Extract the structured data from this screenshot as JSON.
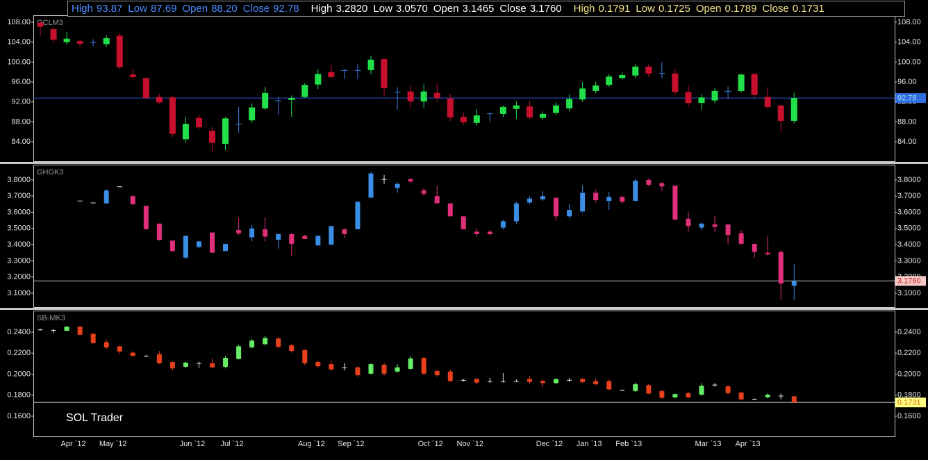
{
  "watermark": "SOL Trader",
  "chart_data": [
    {
      "type": "candlestick",
      "name": "GCLM3",
      "header": [
        {
          "label": "High",
          "value": "93.87"
        },
        {
          "label": "Low",
          "value": "87.69"
        },
        {
          "label": "Open",
          "value": "88.20"
        },
        {
          "label": "Close",
          "value": "92.78"
        }
      ],
      "header_color": "#4a8cff",
      "colors": {
        "up": "#22e04a",
        "down": "#c8102e",
        "flat": "#3a7de0"
      },
      "ylim": [
        80.1,
        109.4
      ],
      "yticks": [
        {
          "value": 84,
          "label": "84.00"
        },
        {
          "value": 88,
          "label": "88.00"
        },
        {
          "value": 92,
          "label": "92.00"
        },
        {
          "value": 96,
          "label": "96.00"
        },
        {
          "value": 100,
          "label": "100.00"
        },
        {
          "value": 104,
          "label": "104.00"
        },
        {
          "value": 108,
          "label": "108.00"
        }
      ],
      "last": {
        "value": 92.78,
        "label": "92.78",
        "line_color": "#2a52d6",
        "box_color": "#2f6fe0",
        "text_color": "#a8d4ff"
      },
      "open": [
        107.9,
        106.6,
        104.0,
        104.2,
        104.0,
        103.6,
        105.3,
        97.5,
        96.8,
        93.0,
        92.9,
        84.5,
        88.8,
        86.2,
        83.6,
        87.6,
        88.3,
        90.7,
        92.3,
        92.4,
        93.0,
        95.5,
        98.0,
        98.4,
        98.4,
        98.4,
        100.6,
        94.0,
        94.1,
        92.1,
        93.8,
        92.7,
        89.0,
        87.8,
        89.7,
        89.6,
        90.6,
        91.1,
        88.8,
        89.8,
        90.7,
        92.5,
        94.2,
        95.4,
        96.8,
        97.3,
        99.1,
        97.8,
        97.7,
        94.0,
        91.8,
        92.3,
        94.2,
        94.2,
        97.6,
        93.0,
        91.3,
        88.2
      ],
      "high": [
        108.1,
        107.0,
        106.0,
        104.6,
        104.6,
        105.4,
        105.8,
        98.5,
        96.9,
        93.6,
        93.3,
        89.0,
        89.5,
        87.0,
        89.0,
        91.0,
        91.7,
        95.0,
        93.0,
        93.3,
        95.8,
        98.5,
        99.4,
        98.6,
        99.6,
        101.3,
        100.7,
        95.0,
        95.2,
        95.5,
        95.7,
        93.5,
        89.8,
        90.6,
        89.9,
        91.3,
        92.1,
        92.2,
        90.1,
        91.9,
        93.5,
        96.0,
        96.1,
        97.6,
        98.0,
        99.6,
        99.5,
        100.0,
        98.6,
        95.3,
        93.6,
        94.8,
        95.1,
        97.7,
        97.8,
        95.0,
        91.4,
        93.87
      ],
      "low": [
        105.3,
        104.0,
        103.5,
        103.0,
        103.2,
        103.0,
        98.6,
        96.5,
        92.6,
        91.6,
        85.0,
        83.8,
        86.5,
        82.0,
        82.3,
        85.8,
        87.8,
        90.4,
        89.5,
        89.0,
        92.8,
        94.6,
        96.8,
        96.6,
        96.6,
        97.6,
        93.0,
        90.5,
        90.8,
        90.8,
        92.1,
        88.2,
        87.4,
        87.2,
        88.0,
        89.0,
        88.6,
        88.6,
        88.4,
        89.3,
        90.1,
        92.0,
        93.7,
        95.0,
        96.5,
        96.7,
        97.0,
        96.7,
        93.4,
        91.0,
        90.4,
        91.8,
        92.6,
        93.9,
        92.9,
        90.6,
        86.0,
        87.69
      ],
      "close": [
        107.1,
        104.5,
        104.7,
        103.7,
        104.0,
        104.8,
        99.0,
        97.0,
        92.8,
        91.9,
        85.6,
        87.6,
        86.9,
        83.8,
        88.7,
        87.6,
        90.9,
        93.8,
        92.3,
        92.8,
        95.4,
        97.6,
        97.0,
        98.4,
        98.4,
        100.5,
        94.8,
        94.0,
        92.1,
        94.1,
        92.8,
        88.9,
        87.9,
        89.3,
        89.7,
        91.0,
        91.3,
        88.9,
        89.6,
        91.3,
        92.6,
        94.7,
        95.3,
        97.1,
        97.4,
        99.1,
        97.7,
        97.8,
        94.0,
        91.8,
        92.9,
        94.2,
        94.2,
        97.5,
        93.4,
        91.0,
        88.2,
        92.78
      ]
    },
    {
      "type": "candlestick",
      "name": "GHGK3",
      "header": [
        {
          "label": "High",
          "value": "3.2820"
        },
        {
          "label": "Low",
          "value": "3.0570"
        },
        {
          "label": "Open",
          "value": "3.1465"
        },
        {
          "label": "Close",
          "value": "3.1760"
        }
      ],
      "header_color": "#ffffff",
      "colors": {
        "up": "#3a8ee6",
        "down": "#e0307a",
        "flat": "#e6e6e6"
      },
      "ylim": [
        3.014,
        3.894
      ],
      "yticks": [
        {
          "value": 3.1,
          "label": "3.1000"
        },
        {
          "value": 3.2,
          "label": "3.2000"
        },
        {
          "value": 3.3,
          "label": "3.3000"
        },
        {
          "value": 3.4,
          "label": "3.4000"
        },
        {
          "value": 3.5,
          "label": "3.5000"
        },
        {
          "value": 3.6,
          "label": "3.6000"
        },
        {
          "value": 3.7,
          "label": "3.7000"
        },
        {
          "value": 3.8,
          "label": "3.8000"
        }
      ],
      "last": {
        "value": 3.176,
        "label": "3.1760",
        "line_color": "#bbbbbb",
        "box_color": "#f4c7c7",
        "text_color": "#d02020"
      },
      "open": [
        null,
        null,
        null,
        3.672,
        3.66,
        3.655,
        3.76,
        3.7,
        3.64,
        3.53,
        3.425,
        3.32,
        3.385,
        3.475,
        3.36,
        3.49,
        3.445,
        3.495,
        3.43,
        3.465,
        3.455,
        3.395,
        3.4,
        3.495,
        3.495,
        3.69,
        3.805,
        3.75,
        3.805,
        3.735,
        3.7,
        3.655,
        3.575,
        3.48,
        3.48,
        3.505,
        3.545,
        3.66,
        3.68,
        3.69,
        3.575,
        3.605,
        3.72,
        3.67,
        3.695,
        3.67,
        3.8,
        3.78,
        3.765,
        3.56,
        3.505,
        3.525,
        3.525,
        3.47,
        3.405,
        3.35,
        3.355,
        3.1465
      ],
      "high": [
        null,
        null,
        null,
        3.672,
        3.66,
        3.742,
        3.76,
        3.705,
        3.64,
        3.53,
        3.425,
        3.455,
        3.425,
        3.475,
        3.405,
        3.565,
        3.52,
        3.57,
        3.47,
        3.47,
        3.46,
        3.455,
        3.515,
        3.5,
        3.665,
        3.85,
        3.83,
        3.785,
        3.81,
        3.75,
        3.765,
        3.655,
        3.575,
        3.5,
        3.49,
        3.555,
        3.665,
        3.7,
        3.73,
        3.69,
        3.65,
        3.765,
        3.74,
        3.725,
        3.7,
        3.805,
        3.81,
        3.785,
        3.765,
        3.605,
        3.535,
        3.58,
        3.525,
        3.49,
        3.405,
        3.455,
        3.365,
        3.282
      ],
      "low": [
        null,
        null,
        null,
        3.672,
        3.66,
        3.655,
        3.76,
        3.645,
        3.495,
        3.425,
        3.36,
        3.31,
        3.38,
        3.35,
        3.36,
        3.46,
        3.42,
        3.42,
        3.375,
        3.33,
        3.435,
        3.395,
        3.4,
        3.44,
        3.495,
        3.69,
        3.775,
        3.72,
        3.78,
        3.7,
        3.655,
        3.575,
        3.495,
        3.45,
        3.455,
        3.495,
        3.53,
        3.65,
        3.67,
        3.545,
        3.565,
        3.6,
        3.66,
        3.615,
        3.65,
        3.67,
        3.76,
        3.73,
        3.55,
        3.48,
        3.49,
        3.48,
        3.4,
        3.4,
        3.32,
        3.33,
        3.06,
        3.057
      ],
      "close": [
        null,
        null,
        null,
        3.672,
        3.66,
        3.735,
        3.76,
        3.65,
        3.495,
        3.43,
        3.36,
        3.455,
        3.42,
        3.35,
        3.405,
        3.47,
        3.5,
        3.45,
        3.465,
        3.405,
        3.435,
        3.455,
        3.515,
        3.465,
        3.665,
        3.84,
        3.805,
        3.775,
        3.79,
        3.715,
        3.655,
        3.575,
        3.495,
        3.465,
        3.465,
        3.545,
        3.655,
        3.685,
        3.7,
        3.575,
        3.615,
        3.72,
        3.675,
        3.695,
        3.665,
        3.795,
        3.77,
        3.76,
        3.555,
        3.515,
        3.53,
        3.51,
        3.46,
        3.405,
        3.355,
        3.34,
        3.16,
        3.176
      ]
    },
    {
      "type": "candlestick",
      "name": "SB-MK3",
      "header": [
        {
          "label": "High",
          "value": "0.1791"
        },
        {
          "label": "Low",
          "value": "0.1725"
        },
        {
          "label": "Open",
          "value": "0.1789"
        },
        {
          "label": "Close",
          "value": "0.1731"
        }
      ],
      "header_color": "#f3e48c",
      "colors": {
        "up": "#66ee66",
        "down": "#e8401c",
        "flat": "#e6e6e6"
      },
      "ylim": [
        0.1408,
        0.2605
      ],
      "yticks": [
        {
          "value": 0.16,
          "label": "0.1600"
        },
        {
          "value": 0.18,
          "label": "0.1800"
        },
        {
          "value": 0.2,
          "label": "0.2000"
        },
        {
          "value": 0.22,
          "label": "0.2200"
        },
        {
          "value": 0.24,
          "label": "0.2400"
        }
      ],
      "last": {
        "value": 0.1731,
        "label": "0.1731",
        "line_color": "#dddddd",
        "box_color": "#ffff80",
        "text_color": "#d06010"
      },
      "categories": [
        null,
        null,
        "Apr `12",
        null,
        null,
        "May `12",
        null,
        null,
        null,
        null,
        null,
        "Jun `12",
        null,
        null,
        "Jul `12",
        null,
        null,
        null,
        null,
        null,
        "Aug `12",
        null,
        null,
        "Sep `12",
        null,
        null,
        null,
        null,
        null,
        "Oct `12",
        null,
        null,
        "Nov `12",
        null,
        null,
        null,
        null,
        null,
        "Dec `12",
        null,
        null,
        "Jan `13",
        null,
        null,
        "Feb `13",
        null,
        null,
        null,
        null,
        null,
        "Mar `13",
        null,
        null,
        "Apr `13",
        null,
        null,
        null,
        null
      ],
      "open": [
        0.2425,
        0.242,
        0.2413,
        0.2453,
        0.2385,
        0.2305,
        0.2265,
        0.2205,
        0.2175,
        0.219,
        0.2115,
        0.207,
        0.2105,
        0.2105,
        0.207,
        0.2145,
        0.2255,
        0.2285,
        0.234,
        0.2275,
        0.223,
        0.2115,
        0.2095,
        0.2065,
        0.2065,
        0.2005,
        0.209,
        0.2025,
        0.205,
        0.2155,
        0.203,
        0.2025,
        0.1945,
        0.1955,
        0.1935,
        0.1935,
        0.1935,
        0.1955,
        0.1935,
        0.1915,
        0.1945,
        0.1955,
        0.1935,
        0.1935,
        0.185,
        0.184,
        0.1895,
        0.184,
        0.178,
        0.182,
        0.1805,
        0.19,
        0.1885,
        0.1825,
        0.1765,
        0.178,
        0.1795,
        0.1789
      ],
      "high": [
        0.2435,
        0.243,
        0.2455,
        0.2455,
        0.2387,
        0.233,
        0.2275,
        0.222,
        0.2185,
        0.222,
        0.212,
        0.212,
        0.212,
        0.215,
        0.2175,
        0.228,
        0.2335,
        0.2365,
        0.2355,
        0.229,
        0.2235,
        0.213,
        0.2125,
        0.2105,
        0.2075,
        0.2105,
        0.2105,
        0.2095,
        0.2175,
        0.2165,
        0.2045,
        0.2045,
        0.1955,
        0.1965,
        0.1965,
        0.201,
        0.195,
        0.1985,
        0.195,
        0.196,
        0.1965,
        0.1965,
        0.196,
        0.195,
        0.1855,
        0.192,
        0.191,
        0.1845,
        0.1815,
        0.1835,
        0.1915,
        0.1915,
        0.189,
        0.1835,
        0.177,
        0.182,
        0.1815,
        0.1791
      ],
      "low": [
        0.2415,
        0.239,
        0.241,
        0.2373,
        0.2293,
        0.224,
        0.2195,
        0.2165,
        0.2165,
        0.2095,
        0.2035,
        0.206,
        0.206,
        0.2055,
        0.2055,
        0.214,
        0.2245,
        0.2275,
        0.2245,
        0.2205,
        0.2085,
        0.2065,
        0.2035,
        0.2035,
        0.1975,
        0.1995,
        0.1985,
        0.2015,
        0.204,
        0.199,
        0.1975,
        0.193,
        0.193,
        0.1905,
        0.1915,
        0.192,
        0.1925,
        0.191,
        0.188,
        0.1905,
        0.193,
        0.1915,
        0.1895,
        0.1845,
        0.184,
        0.183,
        0.181,
        0.1765,
        0.177,
        0.177,
        0.1795,
        0.188,
        0.181,
        0.1755,
        0.1755,
        0.177,
        0.176,
        0.1725
      ],
      "close": [
        0.2425,
        0.242,
        0.2453,
        0.2375,
        0.2295,
        0.2255,
        0.2215,
        0.2175,
        0.2175,
        0.2105,
        0.2055,
        0.211,
        0.2105,
        0.2065,
        0.2155,
        0.2265,
        0.232,
        0.2345,
        0.226,
        0.222,
        0.2105,
        0.2075,
        0.2045,
        0.2065,
        0.199,
        0.2095,
        0.2005,
        0.2065,
        0.215,
        0.2005,
        0.199,
        0.1935,
        0.1945,
        0.192,
        0.1935,
        0.1935,
        0.1935,
        0.1925,
        0.1915,
        0.1955,
        0.1945,
        0.1925,
        0.1905,
        0.1855,
        0.185,
        0.1905,
        0.1815,
        0.1775,
        0.181,
        0.178,
        0.189,
        0.19,
        0.182,
        0.176,
        0.1765,
        0.1805,
        0.1795,
        0.1731
      ]
    }
  ]
}
